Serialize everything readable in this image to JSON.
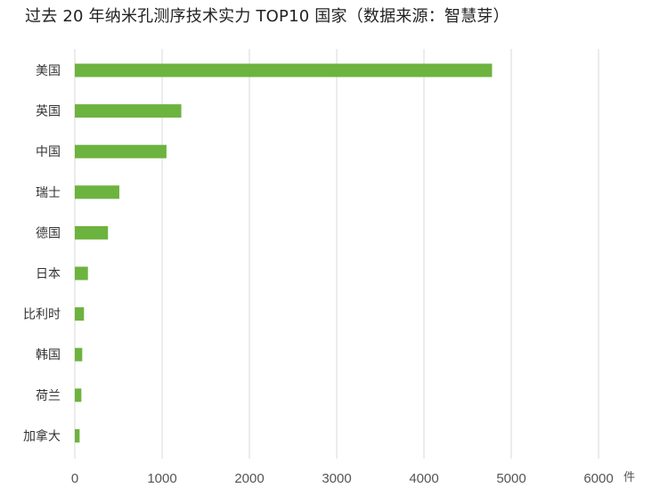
{
  "chart_data": {
    "type": "bar",
    "orientation": "horizontal",
    "title": "过去 20 年纳米孔测序技术实力 TOP10 国家（数据来源：智慧芽）",
    "categories": [
      "美国",
      "英国",
      "中国",
      "瑞士",
      "德国",
      "日本",
      "比利时",
      "韩国",
      "荷兰",
      "加拿大"
    ],
    "series": [
      {
        "values": [
          4780,
          1220,
          1050,
          510,
          380,
          150,
          105,
          85,
          75,
          55
        ]
      }
    ],
    "xlim": [
      0,
      6000
    ],
    "xticks": [
      0,
      1000,
      2000,
      3000,
      4000,
      5000,
      6000
    ],
    "x_unit": "件",
    "grid": "vertical",
    "bar_color": "#6db33f",
    "grid_color": "#d9d9d9"
  }
}
